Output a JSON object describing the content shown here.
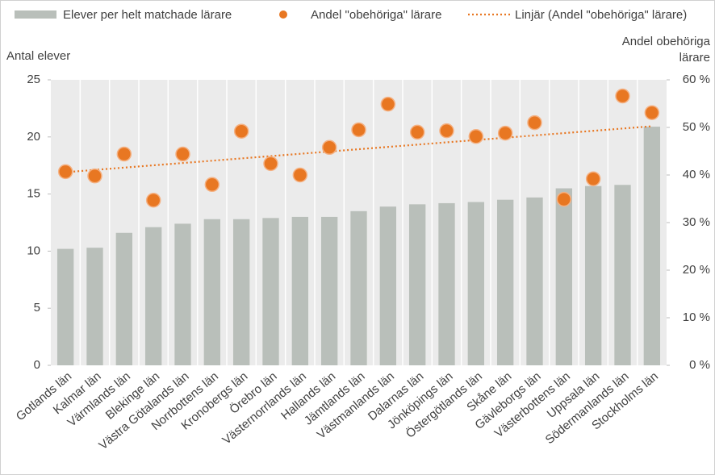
{
  "chart_data": {
    "type": "bar_dot",
    "categories": [
      "Gotlands län",
      "Kalmar län",
      "Värmlands län",
      "Blekinge län",
      "Västra Götalands län",
      "Norrbottens län",
      "Kronobergs län",
      "Örebro län",
      "Västernorrlands län",
      "Hallands län",
      "Jämtlands län",
      "Västmanlands län",
      "Dalarnas län",
      "Jönköpings län",
      "Östergötlands län",
      "Skåne län",
      "Gävleborgs län",
      "Västerbottens län",
      "Uppsala län",
      "Södermanlands län",
      "Stockholms län"
    ],
    "series": [
      {
        "name": "Elever per helt matchade lärare",
        "color": "#b9bfba",
        "values": [
          10.2,
          10.3,
          11.6,
          12.1,
          12.4,
          12.8,
          12.8,
          12.9,
          13.0,
          13.0,
          13.5,
          13.9,
          14.1,
          14.2,
          14.3,
          14.5,
          14.7,
          15.5,
          15.7,
          15.8,
          20.9
        ]
      },
      {
        "name": "Andel \"obehöriga\" lärare",
        "color": "#e87722",
        "axis": "y2",
        "values": [
          40.7,
          39.8,
          44.4,
          34.7,
          44.4,
          38.0,
          49.2,
          42.4,
          40.0,
          45.8,
          49.5,
          54.9,
          49.0,
          49.3,
          48.1,
          48.8,
          51.0,
          34.9,
          39.2,
          56.6,
          53.1
        ]
      }
    ],
    "trendline": {
      "name": "Linjär (Andel \"obehöriga\" lärare)",
      "color": "#e87722"
    },
    "ylabel": "Antal elever",
    "y2label": "Andel obehöriga lärare",
    "ylim": [
      0,
      25
    ],
    "yticks": [
      0,
      5,
      10,
      15,
      20,
      25
    ],
    "y2lim": [
      0,
      60
    ],
    "y2ticks": [
      {
        "value": 0,
        "label": "0 %"
      },
      {
        "value": 10,
        "label": "10 %"
      },
      {
        "value": 20,
        "label": "20 %"
      },
      {
        "value": 30,
        "label": "30 %"
      },
      {
        "value": 40,
        "label": "40 %"
      },
      {
        "value": 50,
        "label": "50 %"
      },
      {
        "value": 60,
        "label": "60 %"
      }
    ]
  }
}
